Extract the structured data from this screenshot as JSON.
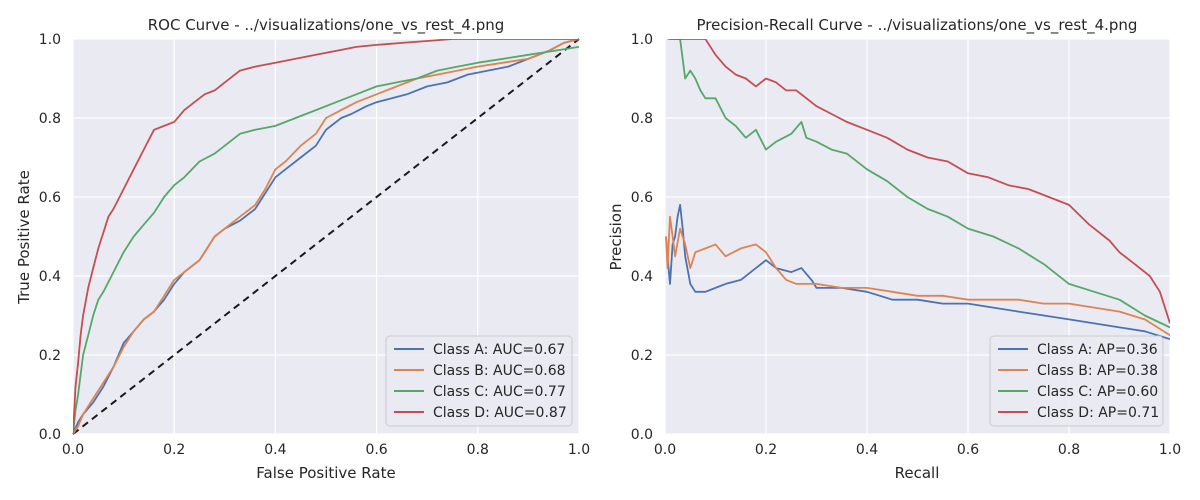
{
  "chart_data": [
    {
      "type": "line",
      "title": "ROC Curve - ../visualizations/one_vs_rest_4.png",
      "xlabel": "False Positive Rate",
      "ylabel": "True Positive Rate",
      "xlim": [
        0,
        1
      ],
      "ylim": [
        0,
        1
      ],
      "xticks": [
        "0.0",
        "0.2",
        "0.4",
        "0.6",
        "0.8",
        "1.0"
      ],
      "yticks": [
        "0.0",
        "0.2",
        "0.4",
        "0.6",
        "0.8",
        "1.0"
      ],
      "grid": true,
      "legend_position": "lower-right",
      "reference_line": {
        "style": "dashed",
        "color": "#1a1a1a",
        "x": [
          0,
          1
        ],
        "y": [
          0,
          1
        ]
      },
      "series": [
        {
          "name": "Class A: AUC=0.67",
          "color": "#4c72b0",
          "x": [
            0,
            0.01,
            0.02,
            0.04,
            0.06,
            0.08,
            0.1,
            0.12,
            0.14,
            0.16,
            0.18,
            0.2,
            0.22,
            0.25,
            0.28,
            0.3,
            0.33,
            0.36,
            0.38,
            0.4,
            0.42,
            0.45,
            0.48,
            0.5,
            0.53,
            0.55,
            0.58,
            0.6,
            0.63,
            0.66,
            0.7,
            0.74,
            0.78,
            0.82,
            0.86,
            0.9,
            0.94,
            0.97,
            1.0
          ],
          "y": [
            0,
            0.03,
            0.05,
            0.08,
            0.12,
            0.17,
            0.23,
            0.26,
            0.29,
            0.31,
            0.34,
            0.38,
            0.41,
            0.44,
            0.5,
            0.52,
            0.54,
            0.57,
            0.61,
            0.65,
            0.67,
            0.7,
            0.73,
            0.77,
            0.8,
            0.81,
            0.83,
            0.84,
            0.85,
            0.86,
            0.88,
            0.89,
            0.91,
            0.92,
            0.93,
            0.95,
            0.97,
            0.99,
            1.0
          ]
        },
        {
          "name": "Class B: AUC=0.68",
          "color": "#dd8452",
          "x": [
            0,
            0.01,
            0.02,
            0.04,
            0.06,
            0.08,
            0.1,
            0.12,
            0.14,
            0.16,
            0.18,
            0.2,
            0.22,
            0.25,
            0.28,
            0.3,
            0.33,
            0.36,
            0.38,
            0.4,
            0.42,
            0.45,
            0.48,
            0.5,
            0.53,
            0.56,
            0.6,
            0.64,
            0.68,
            0.72,
            0.76,
            0.8,
            0.85,
            0.9,
            0.94,
            0.97,
            1.0
          ],
          "y": [
            0,
            0.02,
            0.05,
            0.09,
            0.13,
            0.17,
            0.22,
            0.26,
            0.29,
            0.31,
            0.35,
            0.39,
            0.41,
            0.44,
            0.5,
            0.52,
            0.55,
            0.58,
            0.62,
            0.67,
            0.69,
            0.73,
            0.76,
            0.8,
            0.82,
            0.84,
            0.86,
            0.88,
            0.9,
            0.91,
            0.92,
            0.93,
            0.94,
            0.95,
            0.97,
            0.99,
            1.0
          ]
        },
        {
          "name": "Class C: AUC=0.77",
          "color": "#55a868",
          "x": [
            0,
            0.005,
            0.01,
            0.02,
            0.03,
            0.04,
            0.05,
            0.06,
            0.08,
            0.1,
            0.12,
            0.14,
            0.16,
            0.18,
            0.2,
            0.22,
            0.25,
            0.28,
            0.3,
            0.33,
            0.36,
            0.4,
            0.44,
            0.48,
            0.52,
            0.56,
            0.6,
            0.64,
            0.68,
            0.72,
            0.76,
            0.8,
            0.85,
            0.9,
            0.95,
            1.0
          ],
          "y": [
            0,
            0.06,
            0.1,
            0.2,
            0.25,
            0.3,
            0.34,
            0.36,
            0.41,
            0.46,
            0.5,
            0.53,
            0.56,
            0.6,
            0.63,
            0.65,
            0.69,
            0.71,
            0.73,
            0.76,
            0.77,
            0.78,
            0.8,
            0.82,
            0.84,
            0.86,
            0.88,
            0.89,
            0.9,
            0.92,
            0.93,
            0.94,
            0.95,
            0.96,
            0.97,
            0.98
          ]
        },
        {
          "name": "Class D: AUC=0.87",
          "color": "#c44e52",
          "x": [
            0,
            0.005,
            0.01,
            0.015,
            0.02,
            0.03,
            0.04,
            0.05,
            0.06,
            0.07,
            0.08,
            0.1,
            0.12,
            0.14,
            0.16,
            0.18,
            0.2,
            0.22,
            0.24,
            0.26,
            0.28,
            0.3,
            0.33,
            0.36,
            0.4,
            0.44,
            0.48,
            0.52,
            0.56,
            0.6,
            0.65,
            0.7,
            0.75,
            0.8,
            0.85,
            0.9,
            0.95,
            1.0
          ],
          "y": [
            0,
            0.12,
            0.18,
            0.25,
            0.3,
            0.37,
            0.42,
            0.47,
            0.51,
            0.55,
            0.57,
            0.62,
            0.67,
            0.72,
            0.77,
            0.78,
            0.79,
            0.82,
            0.84,
            0.86,
            0.87,
            0.89,
            0.92,
            0.93,
            0.94,
            0.95,
            0.96,
            0.97,
            0.98,
            0.985,
            0.99,
            0.995,
            1.0,
            1.0,
            1.0,
            1.0,
            1.0,
            1.0
          ]
        }
      ]
    },
    {
      "type": "line",
      "title": "Precision-Recall Curve - ../visualizations/one_vs_rest_4.png",
      "xlabel": "Recall",
      "ylabel": "Precision",
      "xlim": [
        0,
        1
      ],
      "ylim": [
        0,
        1
      ],
      "xticks": [
        "0.0",
        "0.2",
        "0.4",
        "0.6",
        "0.8",
        "1.0"
      ],
      "yticks": [
        "0.0",
        "0.2",
        "0.4",
        "0.6",
        "0.8",
        "1.0"
      ],
      "grid": true,
      "legend_position": "lower-right",
      "series": [
        {
          "name": "Class A: AP=0.36",
          "color": "#4c72b0",
          "x": [
            0.002,
            0.005,
            0.01,
            0.015,
            0.02,
            0.025,
            0.03,
            0.035,
            0.04,
            0.05,
            0.06,
            0.08,
            0.1,
            0.12,
            0.15,
            0.18,
            0.2,
            0.22,
            0.25,
            0.27,
            0.29,
            0.3,
            0.35,
            0.4,
            0.45,
            0.5,
            0.55,
            0.6,
            0.65,
            0.7,
            0.75,
            0.8,
            0.85,
            0.9,
            0.95,
            1.0
          ],
          "y": [
            0.5,
            0.45,
            0.38,
            0.48,
            0.5,
            0.55,
            0.58,
            0.52,
            0.45,
            0.38,
            0.36,
            0.36,
            0.37,
            0.38,
            0.39,
            0.42,
            0.44,
            0.42,
            0.41,
            0.42,
            0.39,
            0.37,
            0.37,
            0.36,
            0.34,
            0.34,
            0.33,
            0.33,
            0.32,
            0.31,
            0.3,
            0.29,
            0.28,
            0.27,
            0.26,
            0.24
          ]
        },
        {
          "name": "Class B: AP=0.38",
          "color": "#dd8452",
          "x": [
            0.002,
            0.005,
            0.01,
            0.015,
            0.02,
            0.03,
            0.04,
            0.05,
            0.06,
            0.08,
            0.1,
            0.12,
            0.15,
            0.18,
            0.2,
            0.22,
            0.24,
            0.26,
            0.3,
            0.35,
            0.4,
            0.45,
            0.5,
            0.55,
            0.6,
            0.65,
            0.7,
            0.75,
            0.8,
            0.85,
            0.9,
            0.95,
            1.0
          ],
          "y": [
            0.5,
            0.42,
            0.55,
            0.5,
            0.45,
            0.52,
            0.48,
            0.42,
            0.46,
            0.47,
            0.48,
            0.45,
            0.47,
            0.48,
            0.46,
            0.42,
            0.39,
            0.38,
            0.38,
            0.37,
            0.37,
            0.36,
            0.35,
            0.35,
            0.34,
            0.34,
            0.34,
            0.33,
            0.33,
            0.32,
            0.31,
            0.29,
            0.25
          ]
        },
        {
          "name": "Class C: AP=0.60",
          "color": "#55a868",
          "x": [
            0.005,
            0.01,
            0.02,
            0.03,
            0.04,
            0.05,
            0.06,
            0.07,
            0.08,
            0.1,
            0.12,
            0.14,
            0.16,
            0.18,
            0.2,
            0.22,
            0.25,
            0.27,
            0.28,
            0.3,
            0.33,
            0.36,
            0.4,
            0.44,
            0.48,
            0.52,
            0.56,
            0.6,
            0.65,
            0.7,
            0.75,
            0.8,
            0.85,
            0.9,
            0.95,
            1.0
          ],
          "y": [
            1.0,
            1.0,
            1.0,
            1.0,
            0.9,
            0.92,
            0.9,
            0.87,
            0.85,
            0.85,
            0.8,
            0.78,
            0.75,
            0.77,
            0.72,
            0.74,
            0.76,
            0.79,
            0.75,
            0.74,
            0.72,
            0.71,
            0.67,
            0.64,
            0.6,
            0.57,
            0.55,
            0.52,
            0.5,
            0.47,
            0.43,
            0.38,
            0.36,
            0.34,
            0.3,
            0.27
          ]
        },
        {
          "name": "Class D: AP=0.71",
          "color": "#c44e52",
          "x": [
            0.01,
            0.02,
            0.04,
            0.06,
            0.08,
            0.1,
            0.12,
            0.14,
            0.16,
            0.18,
            0.2,
            0.22,
            0.24,
            0.26,
            0.28,
            0.3,
            0.33,
            0.36,
            0.4,
            0.44,
            0.48,
            0.52,
            0.56,
            0.6,
            0.64,
            0.68,
            0.72,
            0.76,
            0.8,
            0.84,
            0.88,
            0.9,
            0.93,
            0.96,
            0.98,
            1.0
          ],
          "y": [
            1.0,
            1.0,
            1.0,
            1.0,
            1.0,
            0.96,
            0.93,
            0.91,
            0.9,
            0.88,
            0.9,
            0.89,
            0.87,
            0.87,
            0.85,
            0.83,
            0.81,
            0.79,
            0.77,
            0.75,
            0.72,
            0.7,
            0.69,
            0.66,
            0.65,
            0.63,
            0.62,
            0.6,
            0.58,
            0.53,
            0.49,
            0.46,
            0.43,
            0.4,
            0.36,
            0.28
          ]
        }
      ]
    }
  ]
}
